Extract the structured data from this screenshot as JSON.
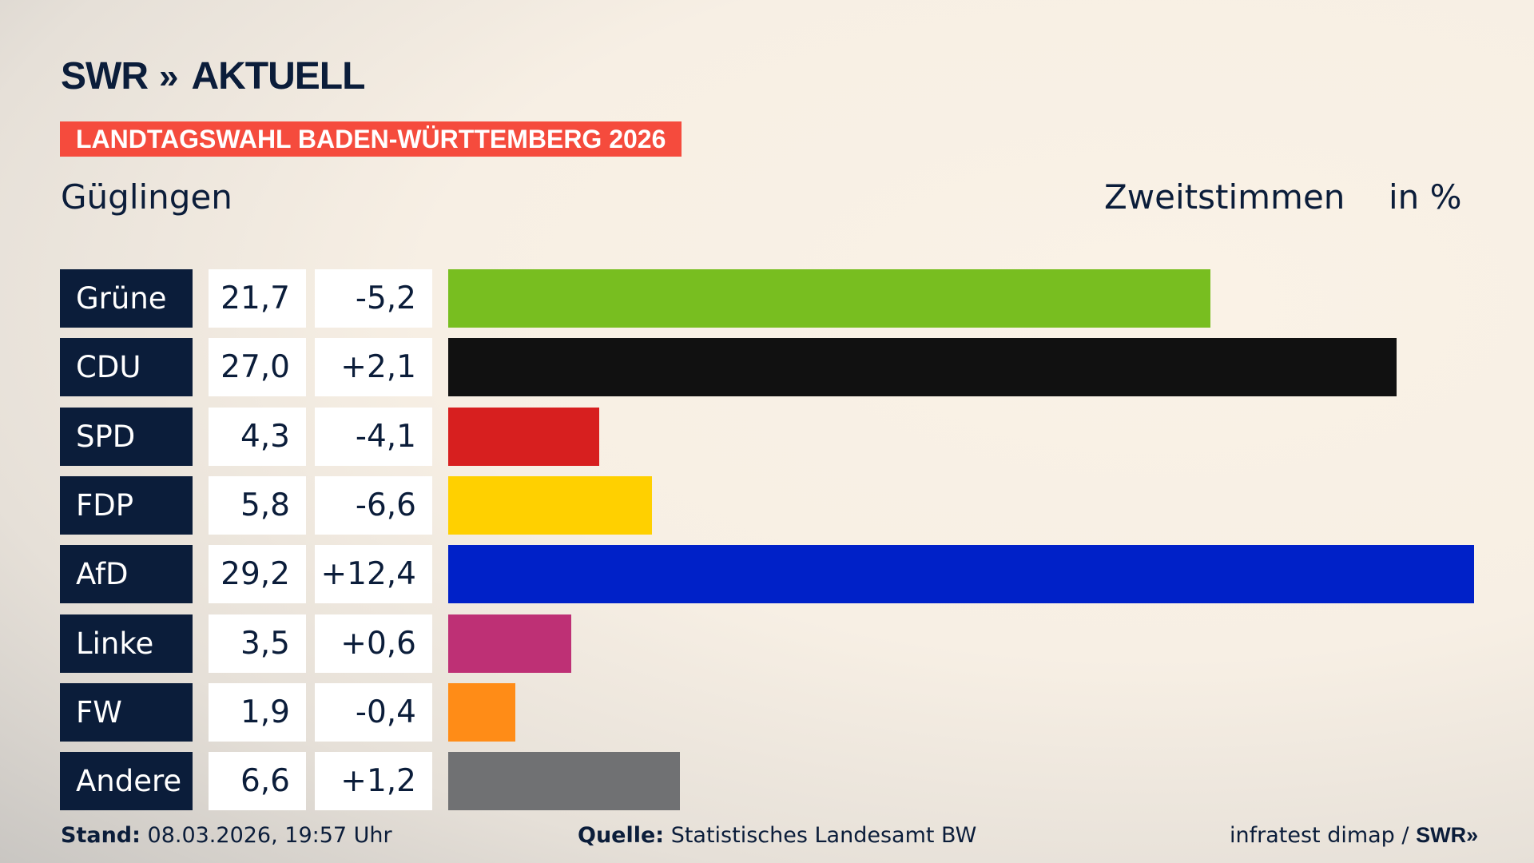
{
  "header": {
    "logo": "SWR AKTUELL",
    "logo_swr": "SWR",
    "logo_aktuell": "AKTUELL",
    "banner": "LANDTAGSWAHL BADEN-WÜRTTEMBERG 2026",
    "location": "Güglingen",
    "measure": "Zweitstimmen",
    "unit": "in %"
  },
  "chart_data": {
    "type": "bar",
    "orientation": "horizontal",
    "categories": [
      "Grüne",
      "CDU",
      "SPD",
      "FDP",
      "AfD",
      "Linke",
      "FW",
      "Andere"
    ],
    "values": [
      21.7,
      27.0,
      4.3,
      5.8,
      29.2,
      3.5,
      1.9,
      6.6
    ],
    "values_label": [
      "21,7",
      "27,0",
      "4,3",
      "5,8",
      "29,2",
      "3,5",
      "1,9",
      "6,6"
    ],
    "changes": [
      -5.2,
      2.1,
      -4.1,
      -6.6,
      12.4,
      0.6,
      -0.4,
      1.2
    ],
    "changes_label": [
      "-5,2",
      "+2,1",
      "-4,1",
      "-6,6",
      "+12,4",
      "+0,6",
      "-0,4",
      "+1,2"
    ],
    "colors": [
      "#78be20",
      "#111111",
      "#d71f1f",
      "#ffd000",
      "#0021c8",
      "#be3075",
      "#ff8c17",
      "#707173"
    ],
    "title": "Zweitstimmen",
    "ylabel": "in %"
  },
  "footer": {
    "stand_label": "Stand:",
    "stand_value": "08.03.2026, 19:57 Uhr",
    "source_label": "Quelle:",
    "source_value": "Statistisches Landesamt BW",
    "credit": "infratest dimap /",
    "credit_logo": "SWR"
  }
}
